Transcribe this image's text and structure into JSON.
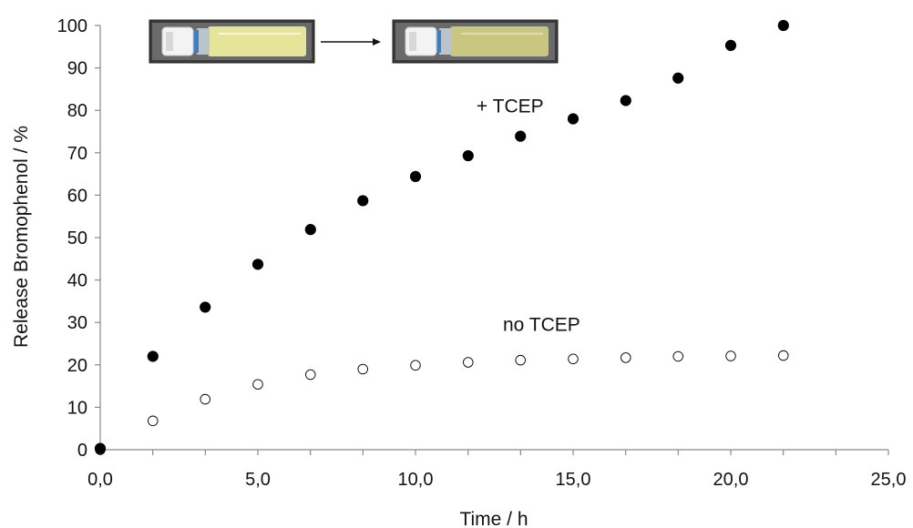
{
  "chart_data": {
    "type": "scatter",
    "title": "",
    "xlabel": "Time / h",
    "ylabel": "Release Bromophenol / %",
    "xlim": [
      0,
      25
    ],
    "ylim": [
      0,
      100
    ],
    "xticks": [
      0,
      5,
      10,
      15,
      20,
      25
    ],
    "xtick_labels": [
      "0,0",
      "5,0",
      "10,0",
      "15,0",
      "20,0",
      "25,0"
    ],
    "yticks": [
      0,
      10,
      20,
      30,
      40,
      50,
      60,
      70,
      80,
      90,
      100
    ],
    "ytick_labels": [
      "0",
      "10",
      "20",
      "30",
      "40",
      "50",
      "60",
      "70",
      "80",
      "90",
      "100"
    ],
    "grid": false,
    "legend": "none",
    "series": [
      {
        "name": "+ TCEP",
        "marker": "filled-circle",
        "color": "#000000",
        "x": [
          0.0,
          1.67,
          3.33,
          5.0,
          6.67,
          8.33,
          10.0,
          11.67,
          13.33,
          15.0,
          16.67,
          18.33,
          20.0,
          21.67
        ],
        "y": [
          0.3,
          22.0,
          33.6,
          43.7,
          51.9,
          58.7,
          64.4,
          69.3,
          73.9,
          78.0,
          82.3,
          87.6,
          95.3,
          100.0
        ]
      },
      {
        "name": "no TCEP",
        "marker": "open-circle",
        "color": "#000000",
        "x": [
          0.0,
          1.67,
          3.33,
          5.0,
          6.67,
          8.33,
          10.0,
          11.67,
          13.33,
          15.0,
          16.67,
          18.33,
          20.0,
          21.67
        ],
        "y": [
          0.0,
          6.8,
          11.9,
          15.4,
          17.7,
          19.0,
          19.9,
          20.6,
          21.1,
          21.4,
          21.7,
          22.0,
          22.1,
          22.2
        ]
      }
    ],
    "annotations": [
      {
        "text": "+ TCEP",
        "x": 13.0,
        "y": 79.5
      },
      {
        "text": "no TCEP",
        "x": 14.0,
        "y": 28.0
      }
    ],
    "inset_photos": [
      "vial-before-photo",
      "vial-after-photo"
    ]
  },
  "colors": {
    "axis": "#8a8a8a",
    "marker": "#000000",
    "vial_before_liquid": "#e4e598",
    "vial_after_liquid": "#c8c680"
  }
}
